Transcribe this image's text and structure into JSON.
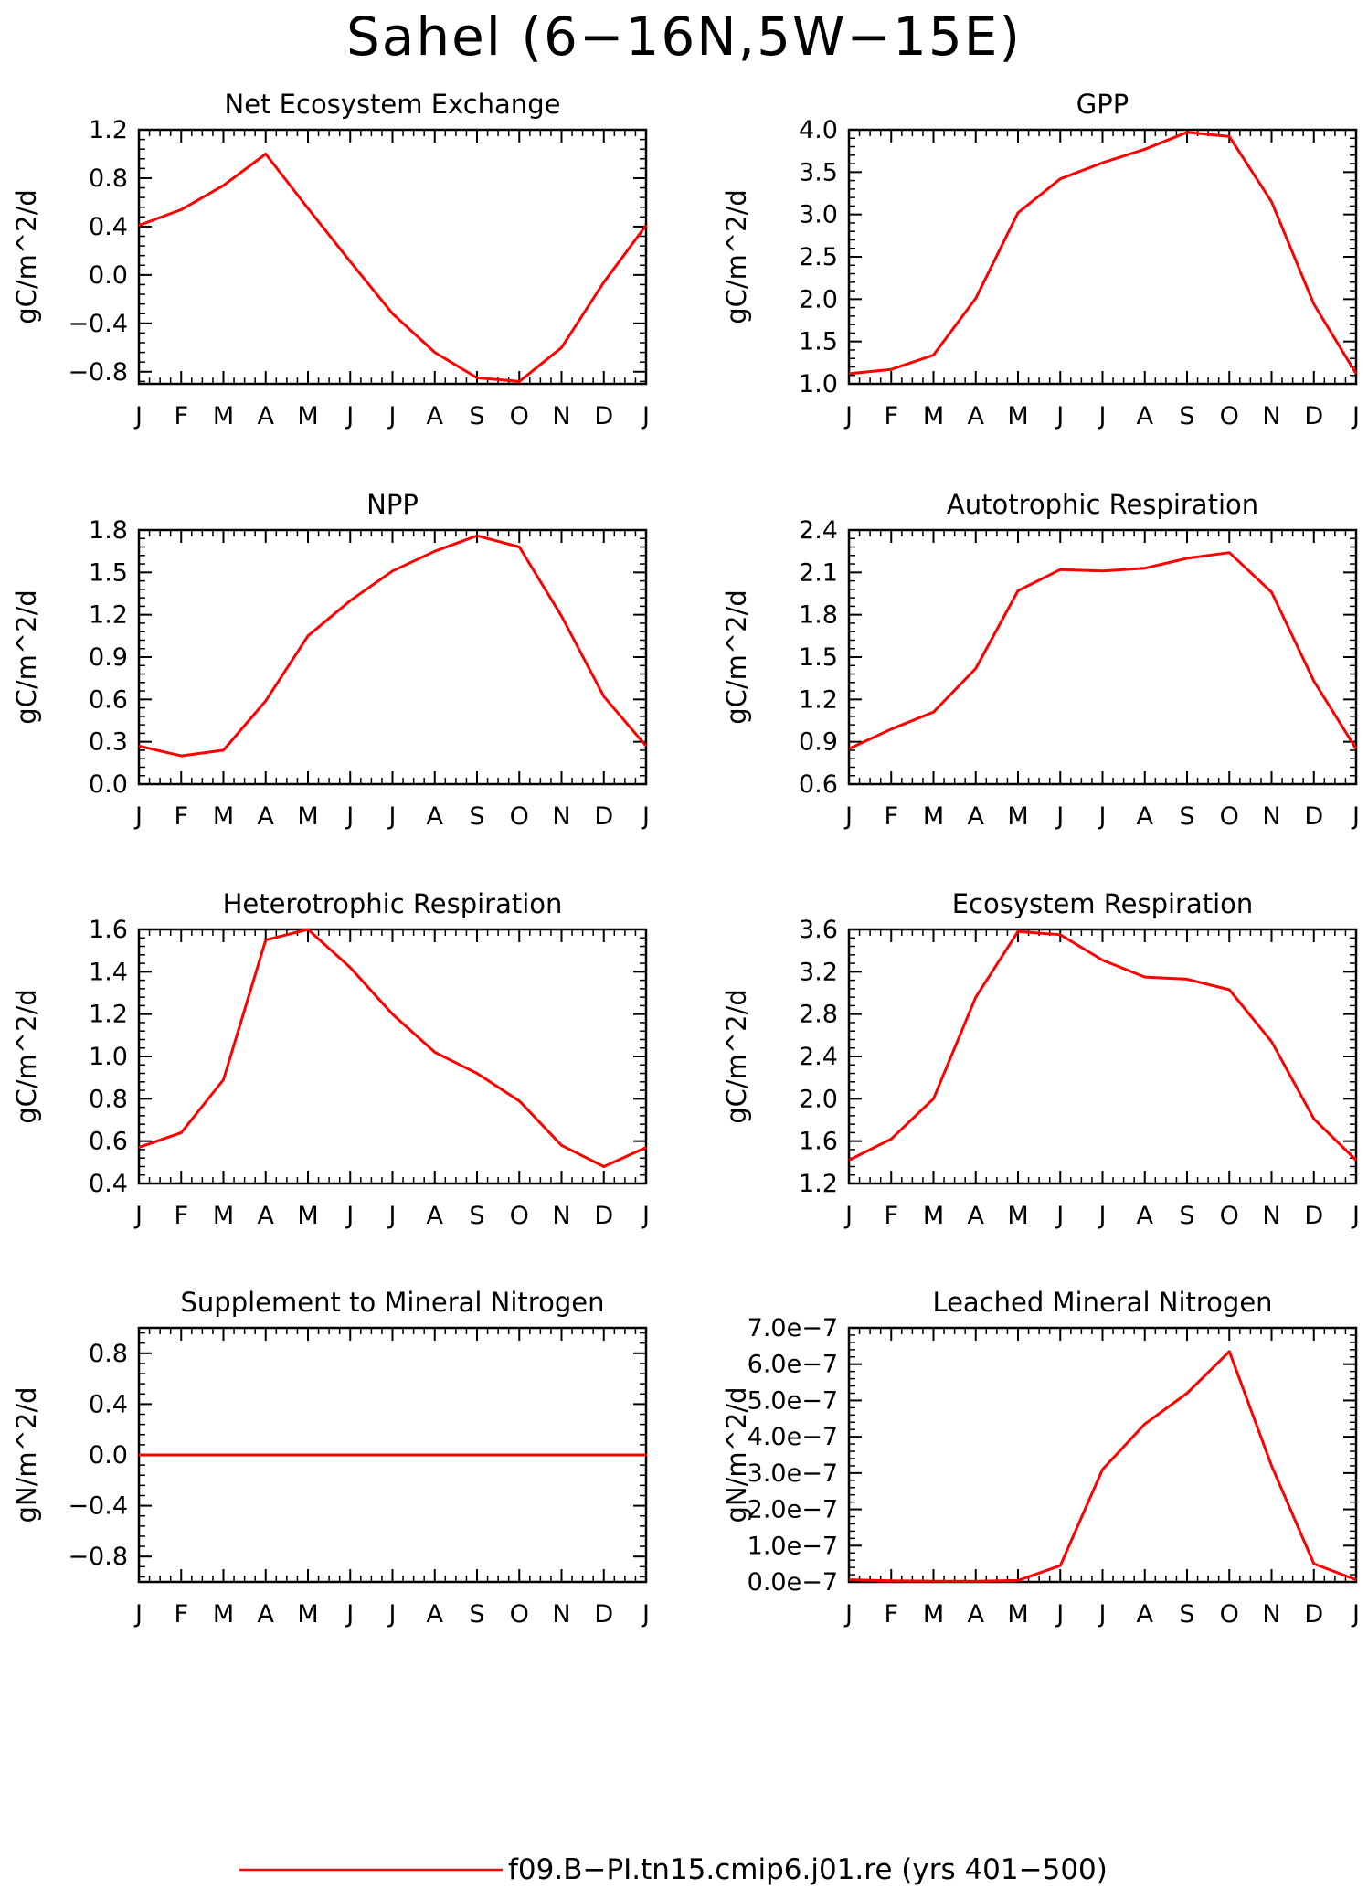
{
  "title": "Sahel (6−16N,5W−15E)",
  "legend": {
    "label": "f09.B−PI.tn15.cmip6.j01.re (yrs 401−500)",
    "color": "#ff0000",
    "position": "bottom-center"
  },
  "series_color": "#ff0000",
  "chart_data": [
    {
      "type": "line",
      "title": "Net Ecosystem Exchange",
      "ylabel": "gC/m^2/d",
      "x": [
        "J",
        "F",
        "M",
        "A",
        "M",
        "J",
        "J",
        "A",
        "S",
        "O",
        "N",
        "D",
        "J"
      ],
      "values": [
        0.41,
        0.54,
        0.74,
        1.0,
        0.55,
        0.11,
        -0.32,
        -0.64,
        -0.85,
        -0.88,
        -0.6,
        -0.06,
        0.41
      ],
      "ylim": [
        -0.9,
        1.2
      ],
      "yticks": [
        -0.8,
        -0.4,
        0.0,
        0.4,
        0.8,
        1.2
      ],
      "ytick_labels": [
        "−0.8",
        "−0.4",
        "0.0",
        "0.4",
        "0.8",
        "1.2"
      ]
    },
    {
      "type": "line",
      "title": "GPP",
      "ylabel": "gC/m^2/d",
      "x": [
        "J",
        "F",
        "M",
        "A",
        "M",
        "J",
        "J",
        "A",
        "S",
        "O",
        "N",
        "D",
        "J"
      ],
      "values": [
        1.12,
        1.17,
        1.34,
        2.01,
        3.02,
        3.42,
        3.61,
        3.77,
        3.97,
        3.92,
        3.15,
        1.94,
        1.12
      ],
      "ylim": [
        1.0,
        4.0
      ],
      "yticks": [
        1.0,
        1.5,
        2.0,
        2.5,
        3.0,
        3.5,
        4.0
      ],
      "ytick_labels": [
        "1.0",
        "1.5",
        "2.0",
        "2.5",
        "3.0",
        "3.5",
        "4.0"
      ]
    },
    {
      "type": "line",
      "title": "NPP",
      "ylabel": "gC/m^2/d",
      "x": [
        "J",
        "F",
        "M",
        "A",
        "M",
        "J",
        "J",
        "A",
        "S",
        "O",
        "N",
        "D",
        "J"
      ],
      "values": [
        0.27,
        0.2,
        0.24,
        0.59,
        1.05,
        1.3,
        1.51,
        1.65,
        1.76,
        1.68,
        1.19,
        0.62,
        0.27
      ],
      "ylim": [
        0.0,
        1.8
      ],
      "yticks": [
        0.0,
        0.3,
        0.6,
        0.9,
        1.2,
        1.5,
        1.8
      ],
      "ytick_labels": [
        "0.0",
        "0.3",
        "0.6",
        "0.9",
        "1.2",
        "1.5",
        "1.8"
      ]
    },
    {
      "type": "line",
      "title": "Autotrophic Respiration",
      "ylabel": "gC/m^2/d",
      "x": [
        "J",
        "F",
        "M",
        "A",
        "M",
        "J",
        "J",
        "A",
        "S",
        "O",
        "N",
        "D",
        "J"
      ],
      "values": [
        0.85,
        0.99,
        1.11,
        1.42,
        1.97,
        2.12,
        2.11,
        2.13,
        2.2,
        2.24,
        1.96,
        1.33,
        0.85
      ],
      "ylim": [
        0.6,
        2.4
      ],
      "yticks": [
        0.6,
        0.9,
        1.2,
        1.5,
        1.8,
        2.1,
        2.4
      ],
      "ytick_labels": [
        "0.6",
        "0.9",
        "1.2",
        "1.5",
        "1.8",
        "2.1",
        "2.4"
      ]
    },
    {
      "type": "line",
      "title": "Heterotrophic Respiration",
      "ylabel": "gC/m^2/d",
      "x": [
        "J",
        "F",
        "M",
        "A",
        "M",
        "J",
        "J",
        "A",
        "S",
        "O",
        "N",
        "D",
        "J"
      ],
      "values": [
        0.57,
        0.64,
        0.89,
        1.55,
        1.6,
        1.42,
        1.2,
        1.02,
        0.92,
        0.79,
        0.58,
        0.48,
        0.57
      ],
      "ylim": [
        0.4,
        1.6
      ],
      "yticks": [
        0.4,
        0.6,
        0.8,
        1.0,
        1.2,
        1.4,
        1.6
      ],
      "ytick_labels": [
        "0.4",
        "0.6",
        "0.8",
        "1.0",
        "1.2",
        "1.4",
        "1.6"
      ]
    },
    {
      "type": "line",
      "title": "Ecosystem Respiration",
      "ylabel": "gC/m^2/d",
      "x": [
        "J",
        "F",
        "M",
        "A",
        "M",
        "J",
        "J",
        "A",
        "S",
        "O",
        "N",
        "D",
        "J"
      ],
      "values": [
        1.42,
        1.62,
        2.0,
        2.96,
        3.58,
        3.55,
        3.31,
        3.15,
        3.13,
        3.03,
        2.54,
        1.81,
        1.42
      ],
      "ylim": [
        1.2,
        3.6
      ],
      "yticks": [
        1.2,
        1.6,
        2.0,
        2.4,
        2.8,
        3.2,
        3.6
      ],
      "ytick_labels": [
        "1.2",
        "1.6",
        "2.0",
        "2.4",
        "2.8",
        "3.2",
        "3.6"
      ]
    },
    {
      "type": "line",
      "title": "Supplement to Mineral Nitrogen",
      "ylabel": "gN/m^2/d",
      "x": [
        "J",
        "F",
        "M",
        "A",
        "M",
        "J",
        "J",
        "A",
        "S",
        "O",
        "N",
        "D",
        "J"
      ],
      "values": [
        0,
        0,
        0,
        0,
        0,
        0,
        0,
        0,
        0,
        0,
        0,
        0,
        0
      ],
      "ylim": [
        -1.0,
        1.0
      ],
      "yticks": [
        -0.8,
        -0.4,
        0.0,
        0.4,
        0.8
      ],
      "ytick_labels": [
        "−0.8",
        "−0.4",
        "0.0",
        "0.4",
        "0.8"
      ]
    },
    {
      "type": "line",
      "title": "Leached Mineral Nitrogen",
      "ylabel": "gN/m^2/d",
      "x": [
        "J",
        "F",
        "M",
        "A",
        "M",
        "J",
        "J",
        "A",
        "S",
        "O",
        "N",
        "D",
        "J"
      ],
      "values": [
        6e-09,
        3e-09,
        2e-09,
        2e-09,
        4e-09,
        4.5e-08,
        3.1e-07,
        4.35e-07,
        5.2e-07,
        6.35e-07,
        3.2e-07,
        5e-08,
        6e-09
      ],
      "ylim": [
        0,
        7e-07
      ],
      "yticks": [
        0,
        1e-07,
        2e-07,
        3e-07,
        4e-07,
        5e-07,
        6e-07,
        7e-07
      ],
      "ytick_labels": [
        "0.0e−7",
        "1.0e−7",
        "2.0e−7",
        "3.0e−7",
        "4.0e−7",
        "5.0e−7",
        "6.0e−7",
        "7.0e−7"
      ]
    }
  ]
}
